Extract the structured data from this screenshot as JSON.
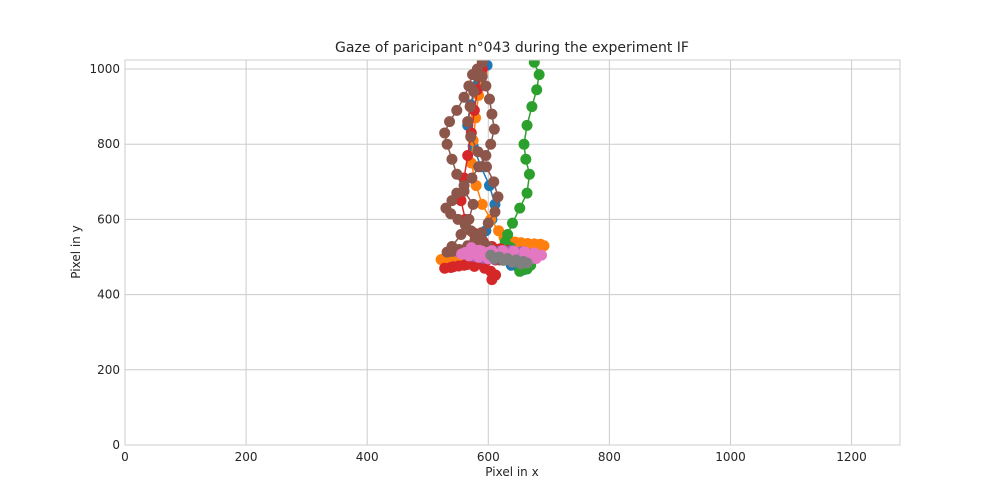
{
  "chart_data": {
    "type": "line",
    "title": "Gaze of paricipant n°043 during the experiment IF",
    "xlabel": "Pixel in x",
    "ylabel": "Pixel in y",
    "xlim": [
      0,
      1280
    ],
    "ylim": [
      0,
      1024
    ],
    "xticks": [
      0,
      200,
      400,
      600,
      800,
      1000,
      1200
    ],
    "yticks": [
      0,
      200,
      400,
      600,
      800,
      1000
    ],
    "grid": true,
    "marker": "circle",
    "series": [
      {
        "color": "#1f77b4",
        "x": [
          598,
          583,
          571,
          566,
          575,
          588,
          602,
          611,
          606,
          596,
          589,
          593,
          604,
          615,
          623,
          628,
          620,
          609,
          597,
          585,
          572,
          566,
          574,
          590,
          602,
          617,
          630,
          637,
          643,
          652,
          658,
          651,
          638
        ],
        "y": [
          1010,
          960,
          905,
          850,
          795,
          740,
          690,
          640,
          600,
          570,
          548,
          535,
          526,
          520,
          515,
          507,
          500,
          495,
          492,
          490,
          494,
          500,
          506,
          512,
          507,
          500,
          493,
          487,
          480,
          472,
          466,
          470,
          478
        ]
      },
      {
        "color": "#ff7f0e",
        "x": [
          590,
          584,
          579,
          575,
          572,
          580,
          590,
          604,
          617,
          626,
          634,
          644,
          654,
          665,
          676,
          686,
          692,
          683,
          668,
          650,
          631,
          612,
          593,
          574,
          556,
          540,
          528,
          522,
          531,
          546,
          563
        ],
        "y": [
          990,
          930,
          870,
          810,
          750,
          690,
          640,
          600,
          570,
          552,
          544,
          540,
          538,
          536,
          535,
          534,
          530,
          522,
          516,
          512,
          510,
          508,
          506,
          504,
          502,
          500,
          497,
          493,
          496,
          500,
          504
        ]
      },
      {
        "color": "#2ca02c",
        "x": [
          676,
          684,
          680,
          672,
          664,
          659,
          662,
          668,
          664,
          652,
          640,
          632,
          628,
          637,
          648,
          659,
          666,
          670,
          664,
          652
        ],
        "y": [
          1018,
          985,
          945,
          900,
          850,
          800,
          760,
          720,
          670,
          630,
          590,
          560,
          540,
          525,
          512,
          500,
          490,
          478,
          468,
          462
        ]
      },
      {
        "color": "#d62728",
        "x": [
          590,
          582,
          577,
          572,
          566,
          560,
          555,
          562,
          575,
          592,
          606,
          620,
          634,
          640,
          630,
          612,
          596,
          580,
          565,
          551,
          538,
          528,
          542,
          560,
          577,
          594,
          604,
          612,
          606
        ],
        "y": [
          1000,
          945,
          890,
          830,
          770,
          710,
          650,
          600,
          565,
          540,
          528,
          522,
          518,
          508,
          498,
          492,
          488,
          484,
          480,
          476,
          472,
          470,
          474,
          478,
          475,
          470,
          462,
          452,
          440
        ]
      },
      {
        "color": "#9467bd",
        "x": [
          548,
          560,
          575,
          592,
          610,
          628,
          646,
          664,
          676,
          670,
          655,
          637,
          620,
          604,
          589
        ],
        "y": [
          515,
          508,
          502,
          497,
          494,
          492,
          492,
          494,
          500,
          508,
          514,
          517,
          516,
          513,
          509
        ]
      },
      {
        "color": "#8c564b",
        "x": [
          590,
          582,
          576,
          570,
          566,
          571,
          583,
          597,
          609,
          616,
          611,
          600,
          589,
          578,
          566,
          552,
          540,
          532,
          540,
          555,
          568,
          575,
          560,
          548,
          540,
          532,
          528,
          536,
          548,
          560,
          568,
          574,
          582,
          590,
          596,
          602,
          606,
          610,
          604,
          596,
          584,
          573,
          560,
          548,
          540,
          530,
          538,
          550,
          562,
          571,
          580,
          590,
          600,
          607,
          612,
          615,
          617,
          618,
          619
        ],
        "y": [
          1018,
          980,
          940,
          900,
          860,
          820,
          780,
          740,
          700,
          660,
          620,
          590,
          565,
          545,
          530,
          520,
          515,
          513,
          528,
          560,
          600,
          640,
          675,
          720,
          760,
          800,
          830,
          860,
          890,
          925,
          955,
          985,
          1000,
          980,
          955,
          920,
          880,
          840,
          800,
          770,
          740,
          710,
          690,
          670,
          650,
          630,
          615,
          600,
          585,
          570,
          555,
          540,
          528,
          518,
          510,
          503,
          498,
          494,
          492
        ]
      },
      {
        "color": "#e377c2",
        "x": [
          572,
          585,
          599,
          613,
          628,
          642,
          656,
          668,
          679,
          688,
          676,
          660,
          642,
          624,
          606,
          589,
          573,
          562,
          556,
          568,
          584,
          600
        ],
        "y": [
          525,
          518,
          512,
          507,
          503,
          499,
          496,
          494,
          496,
          505,
          511,
          514,
          516,
          517,
          517,
          516,
          514,
          512,
          508,
          503,
          499,
          495
        ]
      },
      {
        "color": "#7f7f7f",
        "x": [
          604,
          618,
          632,
          646,
          658,
          664,
          654,
          640,
          625,
          610
        ],
        "y": [
          505,
          500,
          496,
          492,
          488,
          484,
          482,
          486,
          491,
          496
        ]
      }
    ]
  }
}
